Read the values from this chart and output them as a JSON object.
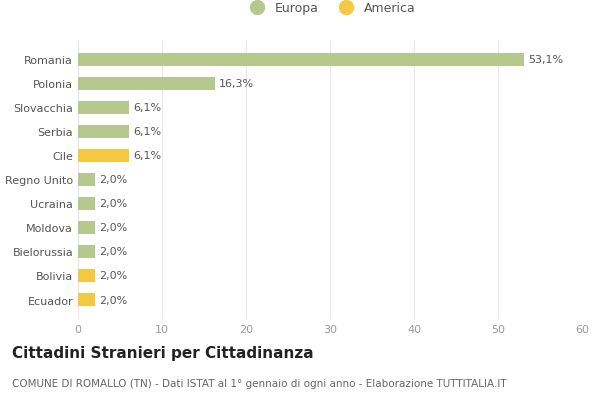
{
  "categories": [
    "Romania",
    "Polonia",
    "Slovacchia",
    "Serbia",
    "Cile",
    "Regno Unito",
    "Ucraina",
    "Moldova",
    "Bielorussia",
    "Bolivia",
    "Ecuador"
  ],
  "values": [
    53.1,
    16.3,
    6.1,
    6.1,
    6.1,
    2.0,
    2.0,
    2.0,
    2.0,
    2.0,
    2.0
  ],
  "colors": [
    "#b5c98e",
    "#b5c98e",
    "#b5c98e",
    "#b5c98e",
    "#f5c842",
    "#b5c98e",
    "#b5c98e",
    "#b5c98e",
    "#b5c98e",
    "#f5c842",
    "#f5c842"
  ],
  "labels": [
    "53,1%",
    "16,3%",
    "6,1%",
    "6,1%",
    "6,1%",
    "2,0%",
    "2,0%",
    "2,0%",
    "2,0%",
    "2,0%",
    "2,0%"
  ],
  "xlim": [
    0,
    60
  ],
  "xticks": [
    0,
    10,
    20,
    30,
    40,
    50,
    60
  ],
  "legend_europa_color": "#b5c98e",
  "legend_america_color": "#f5c842",
  "legend_europa_label": "Europa",
  "legend_america_label": "America",
  "title": "Cittadini Stranieri per Cittadinanza",
  "subtitle": "COMUNE DI ROMALLO (TN) - Dati ISTAT al 1° gennaio di ogni anno - Elaborazione TUTTITALIA.IT",
  "background_color": "#ffffff",
  "grid_color": "#e8e8e8",
  "bar_height": 0.55,
  "label_fontsize": 8,
  "title_fontsize": 11,
  "subtitle_fontsize": 7.5,
  "tick_fontsize": 8,
  "ytick_fontsize": 8,
  "legend_fontsize": 9
}
